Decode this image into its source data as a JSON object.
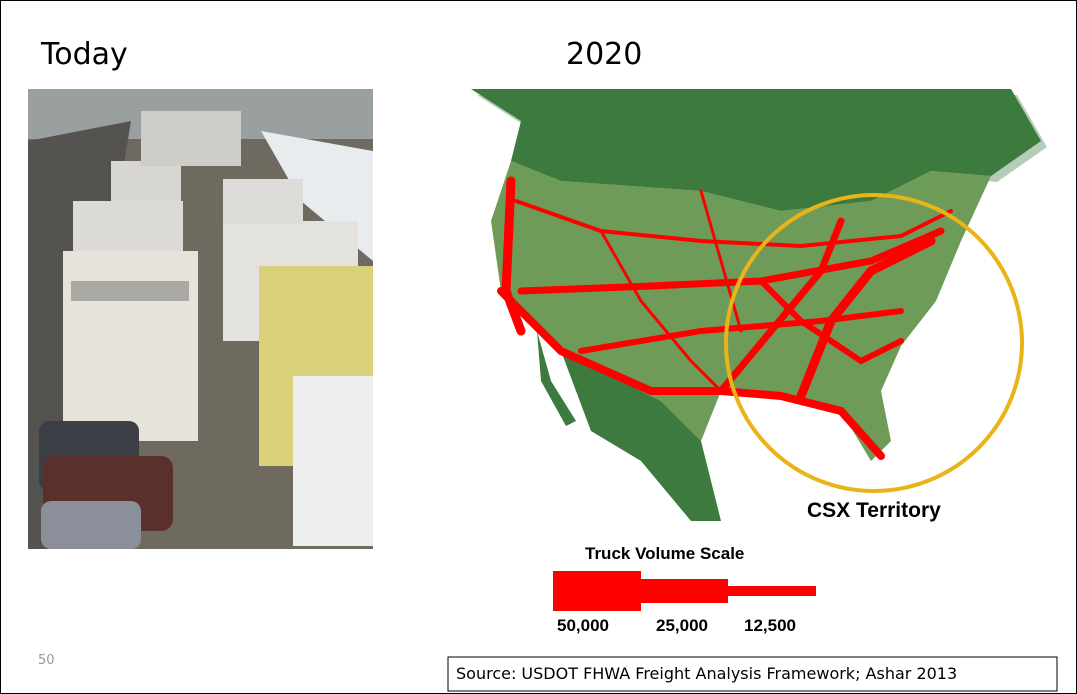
{
  "slide": {
    "left_title": "Today",
    "right_title": "2020",
    "circle_label": "CSX Territory",
    "scale": {
      "title": "Truck Volume Scale",
      "labels": [
        "50,000",
        "25,000",
        "12,500"
      ]
    },
    "page_number": "50",
    "source": "Source:  USDOT FHWA Freight Analysis Framework; Ashar 2013"
  }
}
